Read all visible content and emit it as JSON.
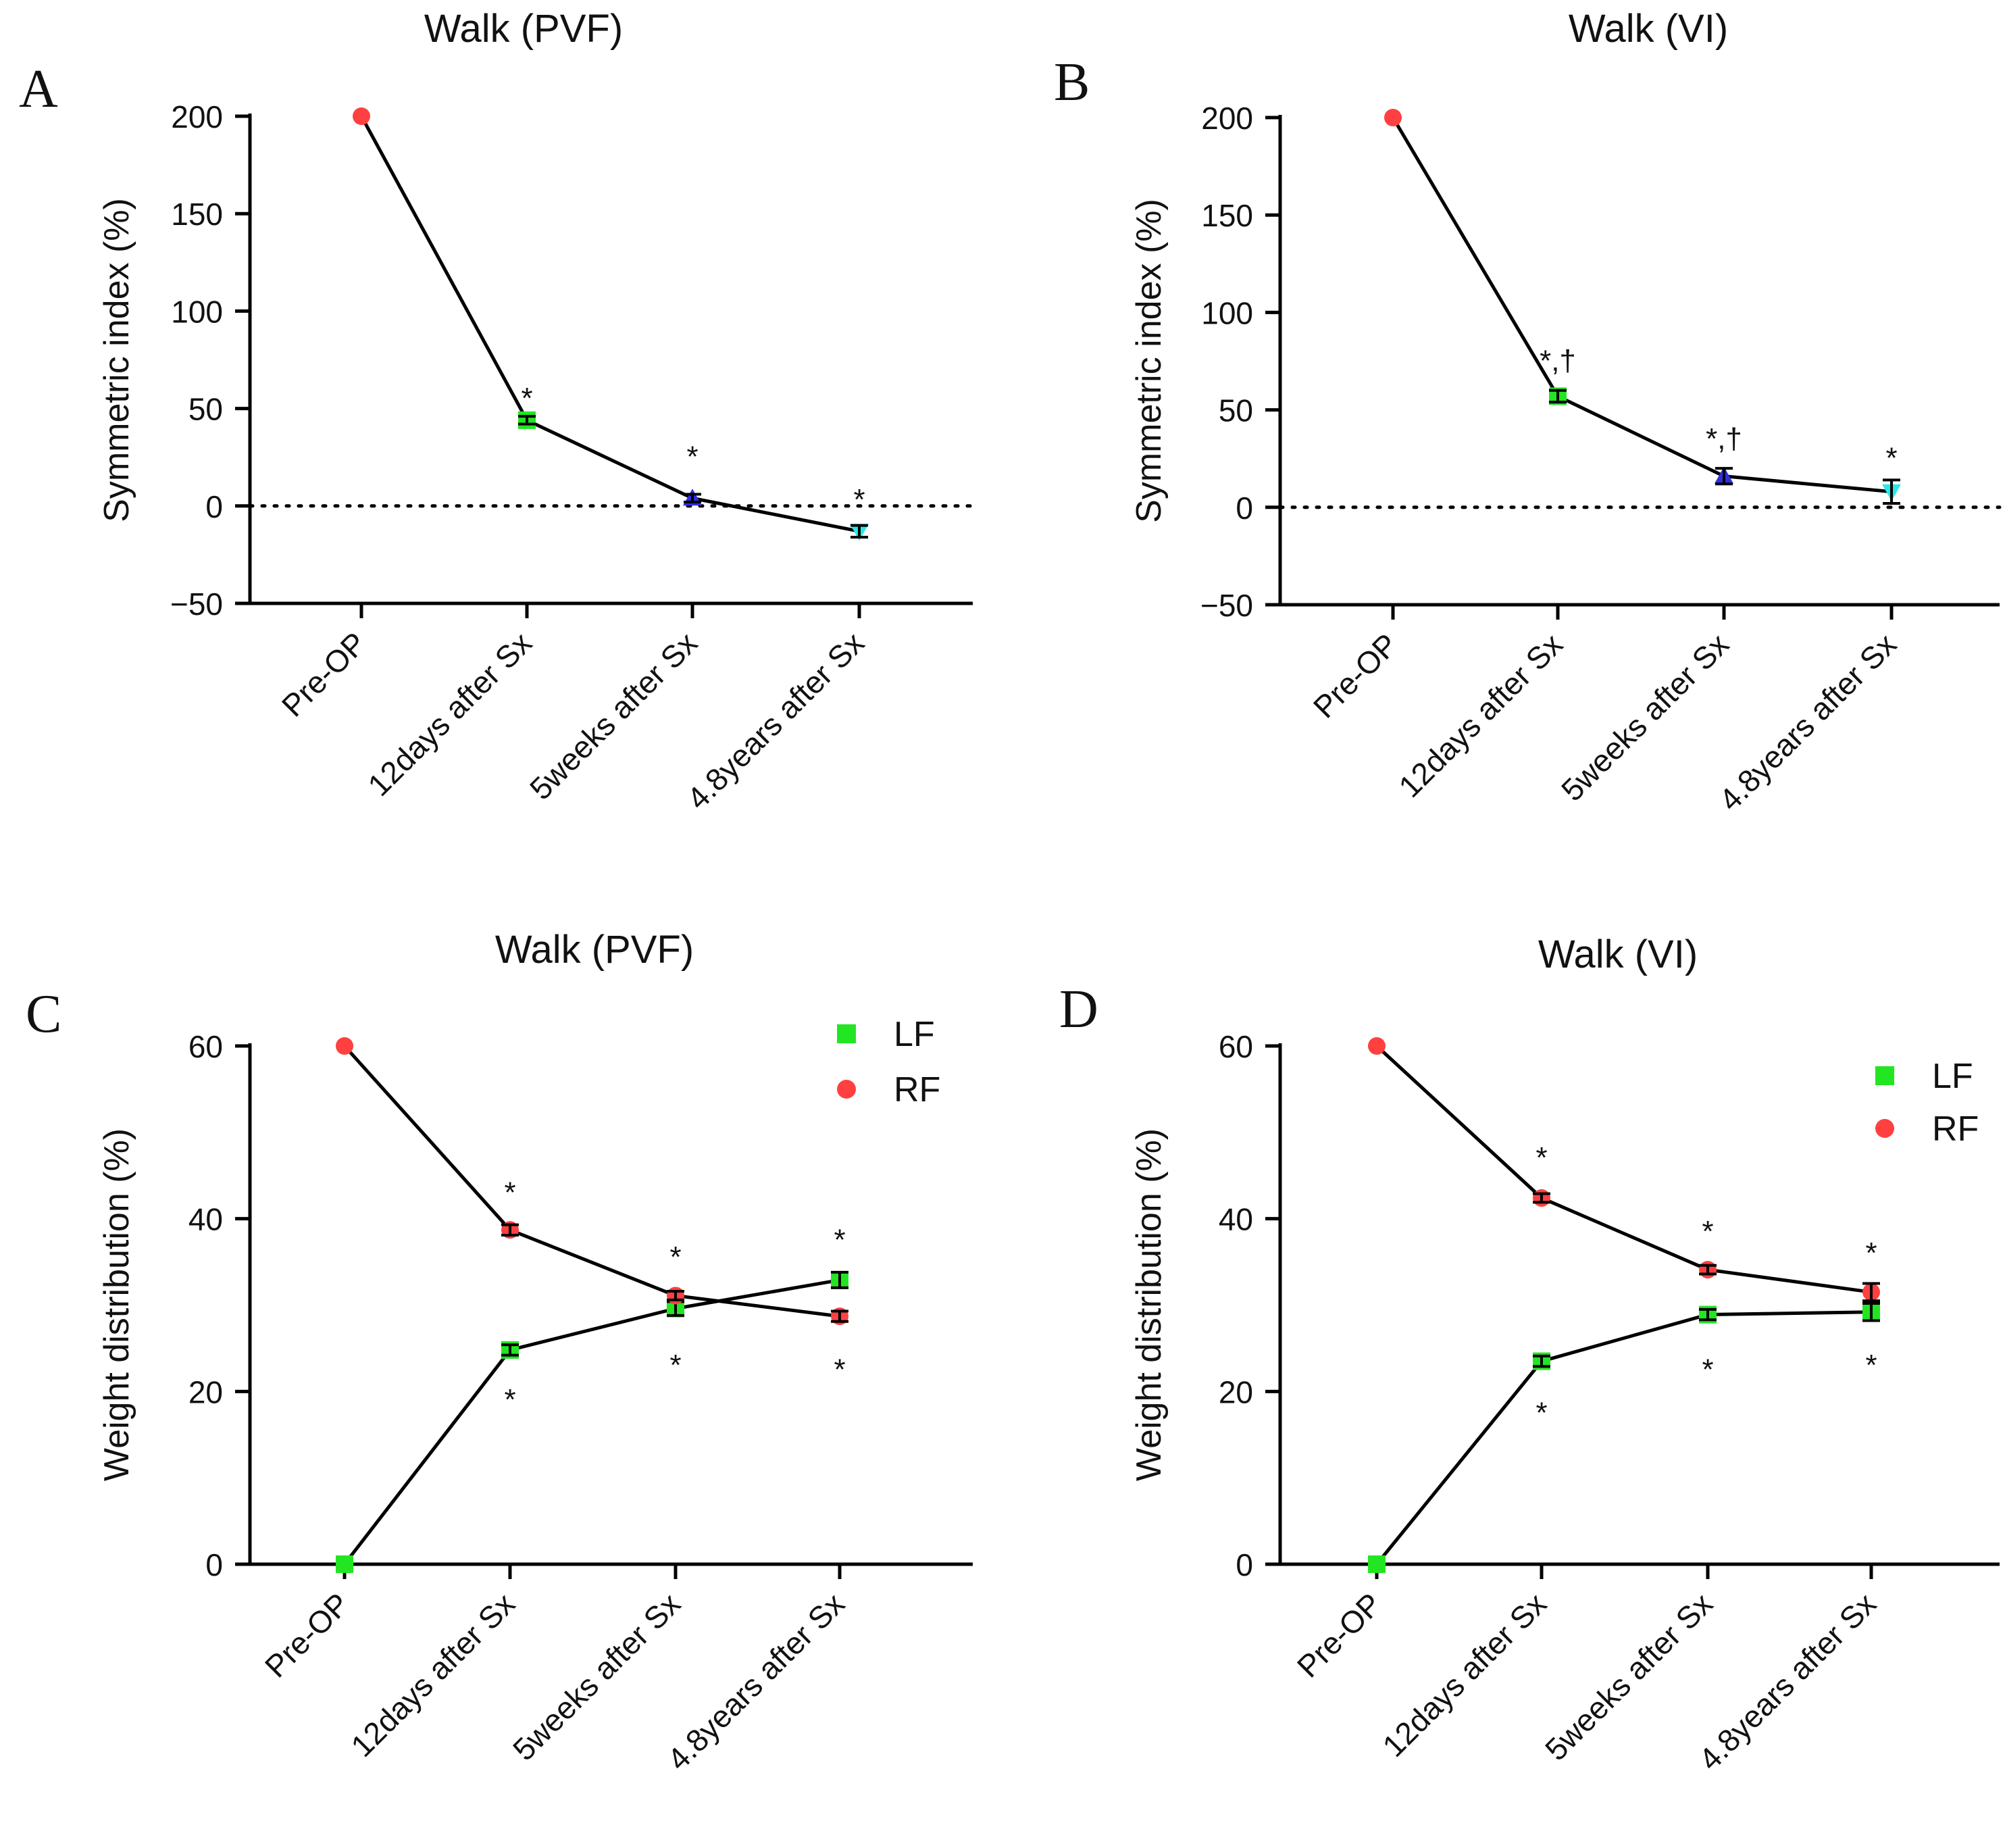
{
  "chart_data": [
    {
      "panel_label": "A",
      "type": "line",
      "title": "Walk (PVF)",
      "xlabel": "",
      "ylabel": "Symmetric index (%)",
      "categories": [
        "Pre-OP",
        "12days after Sx",
        "5weeks after Sx",
        "4.8years after Sx"
      ],
      "ylim": [
        -50,
        200
      ],
      "yticks": [
        -50,
        0,
        50,
        100,
        150,
        200
      ],
      "ytick_labels": [
        "−50",
        "0",
        "50",
        "100",
        "150",
        "200"
      ],
      "reference_line": 0,
      "series": [
        {
          "name": "Symmetric index",
          "values": [
            200,
            44,
            4,
            -13
          ],
          "errors": [
            0,
            2,
            2,
            3
          ],
          "point_colors": [
            "#ff4040",
            "#22e622",
            "#2f2fe0",
            "#2ee6e6"
          ],
          "markers": [
            "circle",
            "square",
            "triangle",
            "triangle-down"
          ]
        }
      ],
      "annotations": [
        "",
        "*",
        "*",
        "*"
      ],
      "annotation_values": [
        null,
        55,
        25,
        3
      ]
    },
    {
      "panel_label": "B",
      "type": "line",
      "title": "Walk (VI)",
      "xlabel": "",
      "ylabel": "Symmetric index (%)",
      "categories": [
        "Pre-OP",
        "12days after Sx",
        "5weeks after Sx",
        "4.8years after Sx"
      ],
      "ylim": [
        -50,
        200
      ],
      "yticks": [
        -50,
        0,
        50,
        100,
        150,
        200
      ],
      "ytick_labels": [
        "−50",
        "0",
        "50",
        "100",
        "150",
        "200"
      ],
      "reference_line": 0,
      "series": [
        {
          "name": "Symmetric index",
          "values": [
            200,
            57,
            16,
            8
          ],
          "errors": [
            0,
            3,
            4,
            6
          ],
          "point_colors": [
            "#ff4040",
            "#22e622",
            "#2f2fe0",
            "#2ee6e6"
          ],
          "markers": [
            "circle",
            "square",
            "triangle",
            "triangle-down"
          ]
        }
      ],
      "annotations": [
        "",
        "*,†",
        "*,†",
        "*"
      ],
      "annotation_values": [
        null,
        75,
        35,
        25
      ]
    },
    {
      "panel_label": "C",
      "type": "line",
      "title": "Walk (PVF)",
      "xlabel": "",
      "ylabel": "Weight distribution (%)",
      "categories": [
        "Pre-OP",
        "12days after Sx",
        "5weeks after Sx",
        "4.8years after Sx"
      ],
      "ylim": [
        0,
        60
      ],
      "yticks": [
        0,
        20,
        40,
        60
      ],
      "ytick_labels": [
        "0",
        "20",
        "40",
        "60"
      ],
      "legend_position": "top-right",
      "series": [
        {
          "name": "LF",
          "values": [
            0,
            24.8,
            29.6,
            32.9
          ],
          "errors": [
            0,
            0.6,
            0.8,
            0.9
          ],
          "color": "#22e622",
          "marker": "square"
        },
        {
          "name": "RF",
          "values": [
            60,
            38.7,
            31.1,
            28.7
          ],
          "errors": [
            0,
            0.6,
            0.5,
            0.6
          ],
          "color": "#ff4040",
          "marker": "circle"
        }
      ],
      "annotations_upper": [
        "",
        "*",
        "*",
        "*"
      ],
      "annotations_upper_values": [
        null,
        43,
        35.5,
        37.5
      ],
      "annotations_lower": [
        "",
        "*",
        "*",
        "*"
      ],
      "annotations_lower_values": [
        null,
        19,
        23,
        22.5
      ]
    },
    {
      "panel_label": "D",
      "type": "line",
      "title": "Walk (VI)",
      "xlabel": "",
      "ylabel": "Weight distribution (%)",
      "categories": [
        "Pre-OP",
        "12days after Sx",
        "5weeks after Sx",
        "4.8years after Sx"
      ],
      "ylim": [
        0,
        60
      ],
      "yticks": [
        0,
        20,
        40,
        60
      ],
      "ytick_labels": [
        "0",
        "20",
        "40",
        "60"
      ],
      "legend_position": "top-right",
      "series": [
        {
          "name": "LF",
          "values": [
            0,
            23.5,
            28.9,
            29.2
          ],
          "errors": [
            0,
            0.6,
            0.6,
            1.0
          ],
          "color": "#22e622",
          "marker": "square"
        },
        {
          "name": "RF",
          "values": [
            60,
            42.4,
            34.1,
            31.5
          ],
          "errors": [
            0,
            0.5,
            0.5,
            1.0
          ],
          "color": "#ff4040",
          "marker": "circle"
        }
      ],
      "annotations_upper": [
        "",
        "*",
        "*",
        "*"
      ],
      "annotations_upper_values": [
        null,
        47,
        38.5,
        36
      ],
      "annotations_lower": [
        "",
        "*",
        "*",
        "*"
      ],
      "annotations_lower_values": [
        null,
        17.5,
        22.5,
        23
      ]
    }
  ]
}
